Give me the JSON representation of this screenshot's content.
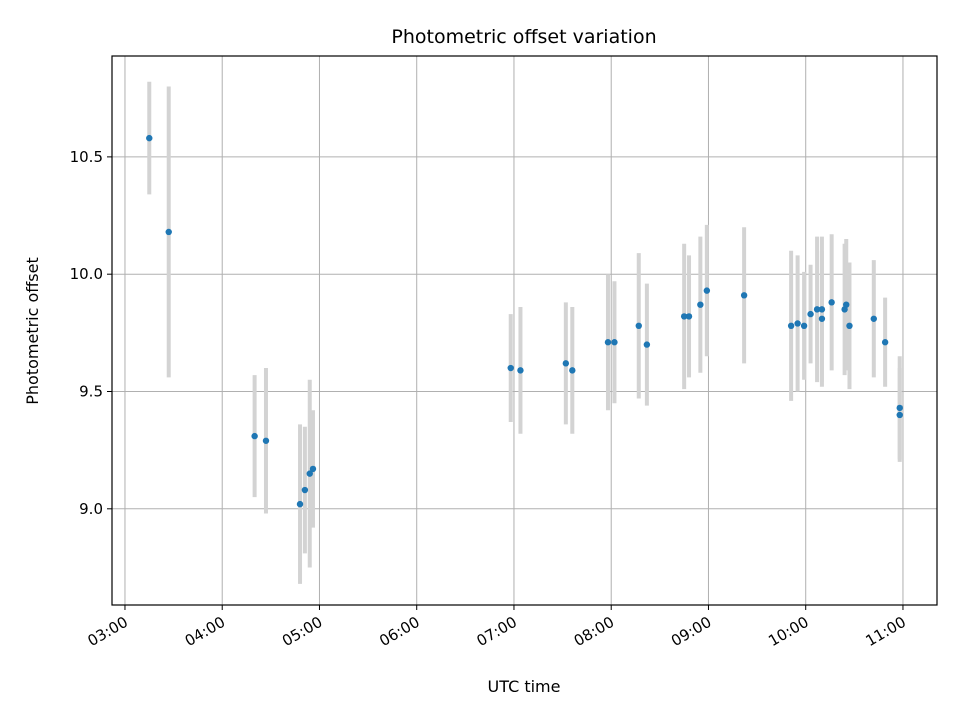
{
  "chart_data": {
    "type": "scatter",
    "title": "Photometric offset variation",
    "xlabel": "UTC time",
    "ylabel": "Photometric offset",
    "x_unit": "UTC time (HH:MM)",
    "xlim": [
      "02:52",
      "11:21"
    ],
    "ylim": [
      8.59,
      10.93
    ],
    "x_ticks": [
      "03:00",
      "04:00",
      "05:00",
      "06:00",
      "07:00",
      "08:00",
      "09:00",
      "10:00",
      "11:00"
    ],
    "y_ticks": [
      9.0,
      9.5,
      10.0,
      10.5
    ],
    "grid": true,
    "marker_color": "#1f77b4",
    "errorbar_color": "#d3d3d3",
    "points": [
      {
        "x": "03:15",
        "y": 10.58,
        "yerr": 0.24
      },
      {
        "x": "03:27",
        "y": 10.18,
        "yerr": 0.62
      },
      {
        "x": "04:20",
        "y": 9.31,
        "yerr": 0.26
      },
      {
        "x": "04:27",
        "y": 9.29,
        "yerr": 0.31
      },
      {
        "x": "04:48",
        "y": 9.02,
        "yerr": 0.34
      },
      {
        "x": "04:51",
        "y": 9.08,
        "yerr": 0.27
      },
      {
        "x": "04:54",
        "y": 9.15,
        "yerr": 0.4
      },
      {
        "x": "04:56",
        "y": 9.17,
        "yerr": 0.25
      },
      {
        "x": "06:58",
        "y": 9.6,
        "yerr": 0.23
      },
      {
        "x": "07:04",
        "y": 9.59,
        "yerr": 0.27
      },
      {
        "x": "07:32",
        "y": 9.62,
        "yerr": 0.26
      },
      {
        "x": "07:36",
        "y": 9.59,
        "yerr": 0.27
      },
      {
        "x": "07:58",
        "y": 9.71,
        "yerr": 0.29
      },
      {
        "x": "08:02",
        "y": 9.71,
        "yerr": 0.26
      },
      {
        "x": "08:17",
        "y": 9.78,
        "yerr": 0.31
      },
      {
        "x": "08:22",
        "y": 9.7,
        "yerr": 0.26
      },
      {
        "x": "08:45",
        "y": 9.82,
        "yerr": 0.31
      },
      {
        "x": "08:48",
        "y": 9.82,
        "yerr": 0.26
      },
      {
        "x": "08:55",
        "y": 9.87,
        "yerr": 0.29
      },
      {
        "x": "08:59",
        "y": 9.93,
        "yerr": 0.28
      },
      {
        "x": "09:22",
        "y": 9.91,
        "yerr": 0.29
      },
      {
        "x": "09:51",
        "y": 9.78,
        "yerr": 0.32
      },
      {
        "x": "09:55",
        "y": 9.79,
        "yerr": 0.29
      },
      {
        "x": "09:59",
        "y": 9.78,
        "yerr": 0.23
      },
      {
        "x": "10:03",
        "y": 9.83,
        "yerr": 0.21
      },
      {
        "x": "10:07",
        "y": 9.85,
        "yerr": 0.31
      },
      {
        "x": "10:10",
        "y": 9.85,
        "yerr": 0.31
      },
      {
        "x": "10:10",
        "y": 9.81,
        "yerr": 0.29
      },
      {
        "x": "10:16",
        "y": 9.88,
        "yerr": 0.29
      },
      {
        "x": "10:24",
        "y": 9.85,
        "yerr": 0.28
      },
      {
        "x": "10:25",
        "y": 9.87,
        "yerr": 0.28
      },
      {
        "x": "10:27",
        "y": 9.78,
        "yerr": 0.27
      },
      {
        "x": "10:42",
        "y": 9.81,
        "yerr": 0.25
      },
      {
        "x": "10:49",
        "y": 9.71,
        "yerr": 0.19
      },
      {
        "x": "10:58",
        "y": 9.43,
        "yerr": 0.22
      },
      {
        "x": "10:58",
        "y": 9.4,
        "yerr": 0.2
      }
    ]
  }
}
